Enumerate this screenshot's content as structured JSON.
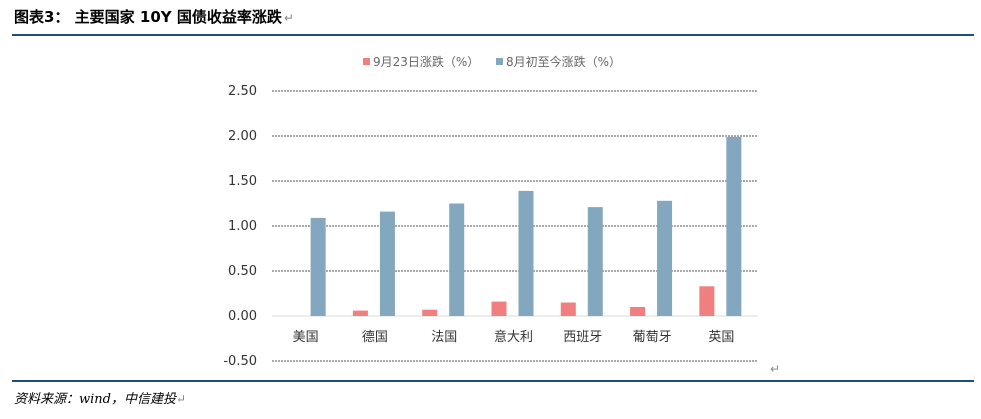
{
  "header": {
    "title": "图表3： 主要国家 10Y 国债收益率涨跌",
    "return_mark": "↵"
  },
  "footer": {
    "source": "资料来源：wind，中信建投",
    "return_mark": "↵"
  },
  "chart_data": {
    "type": "bar",
    "categories": [
      "美国",
      "德国",
      "法国",
      "意大利",
      "西班牙",
      "葡萄牙",
      "英国"
    ],
    "series": [
      {
        "name": "9月23日涨跌（%）",
        "color": "#f08080",
        "values": [
          0.0,
          0.06,
          0.07,
          0.16,
          0.15,
          0.1,
          0.33
        ]
      },
      {
        "name": "8月初至今涨跌（%）",
        "color": "#84a7c0",
        "values": [
          1.09,
          1.16,
          1.25,
          1.39,
          1.21,
          1.28,
          1.99
        ]
      }
    ],
    "yticks": [
      "2.50",
      "2.00",
      "1.50",
      "1.00",
      "0.50",
      "0.00",
      "-0.50"
    ],
    "tick_values": [
      2.5,
      2.0,
      1.5,
      1.0,
      0.5,
      0.0,
      -0.5
    ],
    "ylim": [
      -0.5,
      2.5
    ],
    "grid": true,
    "legend_position": "top-center",
    "title": "",
    "xlabel": "",
    "ylabel": ""
  }
}
